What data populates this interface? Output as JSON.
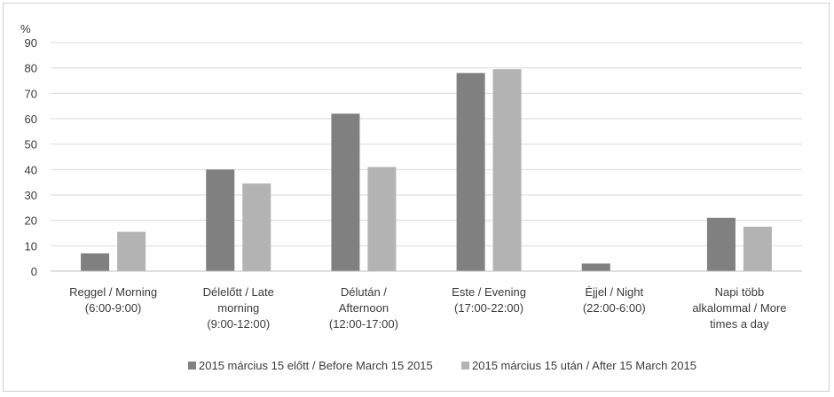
{
  "chart_data": {
    "type": "bar",
    "title": "",
    "xlabel": "",
    "ylabel": "%",
    "ylim": [
      0,
      90
    ],
    "yticks": [
      0,
      10,
      20,
      30,
      40,
      50,
      60,
      70,
      80,
      90
    ],
    "grid": true,
    "legend_position": "bottom",
    "categories": [
      [
        "Reggel / Morning",
        "(6:00-9:00)"
      ],
      [
        "Délelőtt / Late",
        "morning",
        "(9:00-12:00)"
      ],
      [
        "Délután /",
        "Afternoon",
        "(12:00-17:00)"
      ],
      [
        "Este / Evening",
        "(17:00-22:00)"
      ],
      [
        "Éjjel / Night",
        "(22:00-6:00)"
      ],
      [
        "Napi több",
        "alkalommal / More",
        "times a day"
      ]
    ],
    "series": [
      {
        "name": "2015 március 15 előtt / Before March 15 2015",
        "color": "#808080",
        "values": [
          7,
          40,
          62,
          78,
          3,
          21
        ]
      },
      {
        "name": "2015 március 15 után / After 15 March 2015",
        "color": "#b3b3b3",
        "values": [
          15.5,
          34.5,
          41,
          79.5,
          0,
          17.5
        ]
      }
    ]
  }
}
